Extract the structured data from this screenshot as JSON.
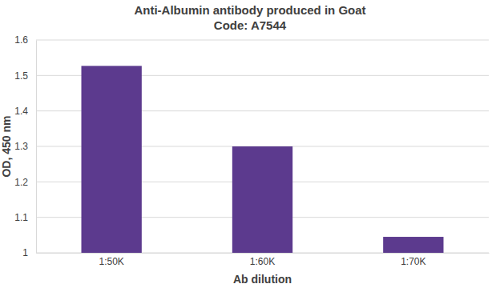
{
  "chart_data": {
    "type": "bar",
    "title": "Anti-Albumin antibody produced in Goat",
    "subtitle": "Code: A7544",
    "x_label": "Ab dilution",
    "y_label": "OD, 450 nm",
    "categories": [
      "1:50K",
      "1:60K",
      "1:70K"
    ],
    "values": [
      1.527,
      1.3,
      1.045
    ],
    "color": "#5c3a8e",
    "ylim": [
      1,
      1.6
    ],
    "yticks": [
      1,
      1.1,
      1.2,
      1.3,
      1.4,
      1.5,
      1.6
    ],
    "grid": true
  }
}
